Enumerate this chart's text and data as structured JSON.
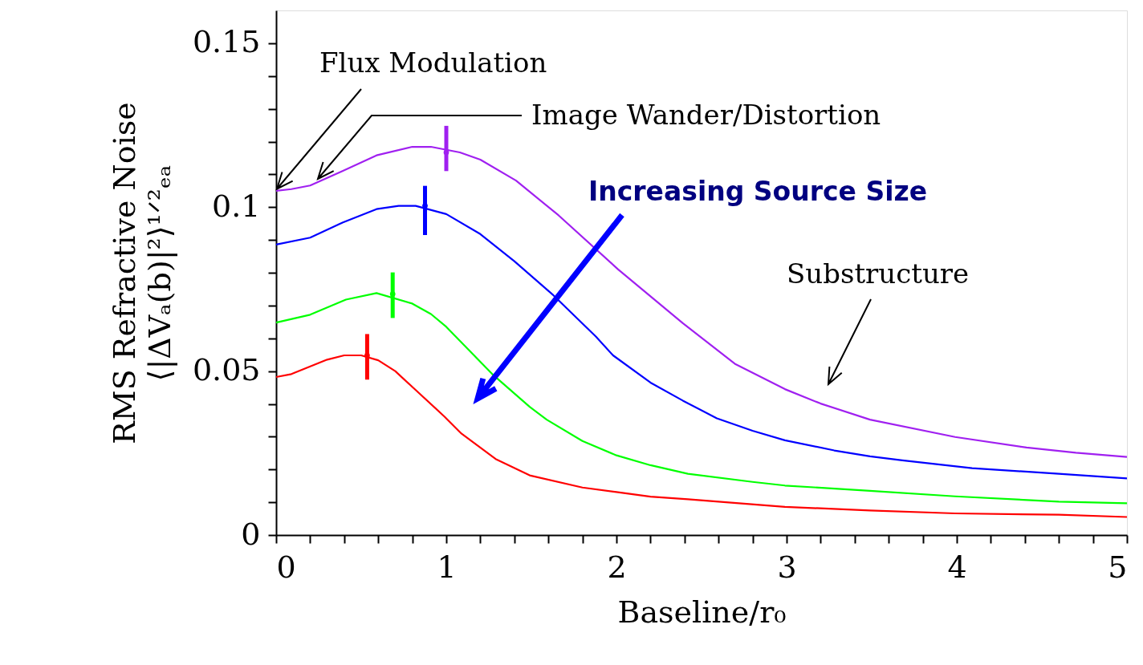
{
  "chart_data": {
    "type": "line",
    "xlabel": "Baseline/r₀",
    "ylabel": "RMS Refractive Noise\n⟨|ΔVₐ(b)|²⟩¹ᐟ²ₑₐ",
    "xlim": [
      0,
      5
    ],
    "ylim": [
      0,
      0.16
    ],
    "xticks": [
      0,
      {
        "value": 0.2,
        "label": null
      },
      {
        "value": 0.4,
        "label": null
      },
      {
        "value": 0.6,
        "label": null
      },
      {
        "value": 0.8,
        "label": null
      },
      1,
      {
        "value": 1.2,
        "label": null
      },
      {
        "value": 1.4,
        "label": null
      },
      {
        "value": 1.6,
        "label": null
      },
      {
        "value": 1.8,
        "label": null
      },
      2,
      {
        "value": 2.2,
        "label": null
      },
      {
        "value": 2.4,
        "label": null
      },
      {
        "value": 2.6,
        "label": null
      },
      {
        "value": 2.8,
        "label": null
      },
      3,
      {
        "value": 3.2,
        "label": null
      },
      {
        "value": 3.4,
        "label": null
      },
      {
        "value": 3.6,
        "label": null
      },
      {
        "value": 3.8,
        "label": null
      },
      4,
      {
        "value": 4.2,
        "label": null
      },
      {
        "value": 4.4,
        "label": null
      },
      {
        "value": 4.6,
        "label": null
      },
      {
        "value": 4.8,
        "label": null
      },
      5
    ],
    "yticks": [
      0,
      {
        "value": 0.01,
        "label": null
      },
      {
        "value": 0.02,
        "label": null
      },
      {
        "value": 0.03,
        "label": null
      },
      {
        "value": 0.04,
        "label": null
      },
      0.05,
      {
        "value": 0.06,
        "label": null
      },
      {
        "value": 0.07,
        "label": null
      },
      {
        "value": 0.08,
        "label": null
      },
      {
        "value": 0.09,
        "label": null
      },
      0.1,
      {
        "value": 0.11,
        "label": null
      },
      {
        "value": 0.12,
        "label": null
      },
      {
        "value": 0.13,
        "label": null
      },
      {
        "value": 0.14,
        "label": null
      },
      0.15
    ],
    "grid": false,
    "marker": "none",
    "line_style": "solid",
    "series": [
      {
        "color": "#a020f0",
        "x": [
          0,
          0.09,
          0.2,
          0.39,
          0.59,
          0.8,
          0.91,
          1.08,
          1.2,
          1.41,
          1.66,
          2.01,
          2.39,
          2.7,
          2.99,
          3.2,
          3.49,
          3.99,
          4.41,
          4.7,
          5
        ],
        "values": [
          0.105,
          0.1055,
          0.1066,
          0.111,
          0.1158,
          0.1184,
          0.1184,
          0.1167,
          0.1145,
          0.1081,
          0.0975,
          0.081,
          0.0646,
          0.0521,
          0.0445,
          0.0401,
          0.0352,
          0.0299,
          0.0267,
          0.0251,
          0.0238
        ]
      },
      {
        "color": "#0000ff",
        "x": [
          0,
          0.2,
          0.39,
          0.59,
          0.72,
          0.82,
          1.0,
          1.2,
          1.4,
          1.63,
          1.88,
          1.98,
          2.2,
          2.39,
          2.59,
          2.8,
          2.99,
          3.28,
          3.49,
          3.68,
          4.09,
          4.6,
          5
        ],
        "values": [
          0.0886,
          0.0907,
          0.0953,
          0.0994,
          0.1004,
          0.1004,
          0.0979,
          0.0918,
          0.0835,
          0.0731,
          0.0605,
          0.0548,
          0.0465,
          0.041,
          0.0356,
          0.0318,
          0.0289,
          0.0258,
          0.024,
          0.0228,
          0.0204,
          0.0187,
          0.0173
        ]
      },
      {
        "color": "#00ff00",
        "x": [
          0,
          0.2,
          0.41,
          0.59,
          0.8,
          0.91,
          1.0,
          1.27,
          1.49,
          1.59,
          1.8,
          2.0,
          2.2,
          2.42,
          2.8,
          2.99,
          3.49,
          3.99,
          4.6,
          5
        ],
        "values": [
          0.0648,
          0.0672,
          0.0718,
          0.0738,
          0.0706,
          0.0674,
          0.0635,
          0.0491,
          0.0391,
          0.0352,
          0.0287,
          0.0243,
          0.0213,
          0.0187,
          0.0162,
          0.0151,
          0.0135,
          0.0118,
          0.0102,
          0.0097
        ]
      },
      {
        "color": "#ff0000",
        "x": [
          0,
          0.09,
          0.3,
          0.4,
          0.5,
          0.6,
          0.7,
          0.8,
          0.99,
          1.09,
          1.29,
          1.49,
          1.8,
          2.0,
          2.2,
          2.42,
          2.99,
          3.49,
          3.99,
          4.6,
          5
        ],
        "values": [
          0.0482,
          0.0491,
          0.0535,
          0.0548,
          0.0548,
          0.0533,
          0.05,
          0.0452,
          0.0361,
          0.0309,
          0.0232,
          0.0182,
          0.0145,
          0.0131,
          0.0117,
          0.0109,
          0.0086,
          0.0075,
          0.0066,
          0.0062,
          0.0055
        ]
      },
      {
        "type": "scatter",
        "marker": "circle",
        "color": "#a020f0",
        "x": [
          1.0
        ],
        "values": [
          0.1167
        ],
        "errors": [
          [
            0.111,
            0.1248
          ]
        ]
      },
      {
        "type": "scatter",
        "marker": "circle",
        "color": "#0000ff",
        "x": [
          0.875
        ],
        "values": [
          0.1004
        ],
        "errors": [
          [
            0.0915,
            0.1065
          ]
        ]
      },
      {
        "type": "scatter",
        "marker": "circle",
        "color": "#00ff00",
        "x": [
          0.685
        ],
        "values": [
          0.0735
        ],
        "errors": [
          [
            0.0662,
            0.0801
          ]
        ]
      },
      {
        "type": "scatter",
        "marker": "circle",
        "color": "#ff0000",
        "x": [
          0.535
        ],
        "values": [
          0.0548
        ],
        "errors": [
          [
            0.0474,
            0.0613
          ]
        ]
      }
    ],
    "annotations": [
      "Flux Modulation",
      "Image Wander/Distortion",
      "Increasing Source Size",
      "Substructure"
    ]
  }
}
